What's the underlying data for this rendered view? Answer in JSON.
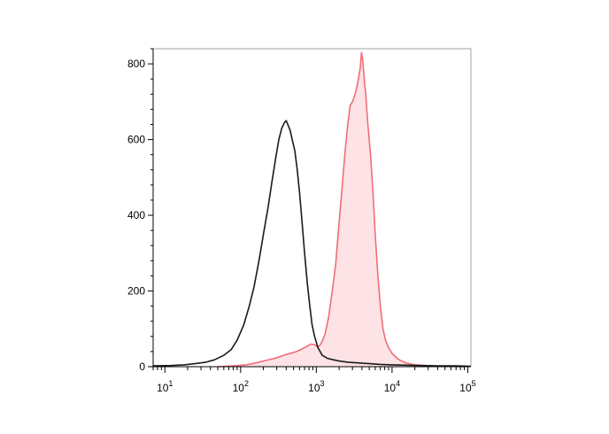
{
  "chart_data": {
    "type": "area",
    "title": "",
    "xlabel": "",
    "ylabel": "",
    "x_scale": "log",
    "xlim": [
      7,
      110000
    ],
    "ylim": [
      0,
      840
    ],
    "grid": false,
    "x_ticks": [
      {
        "value": 10,
        "base": "10",
        "exp": "1"
      },
      {
        "value": 100,
        "base": "10",
        "exp": "2"
      },
      {
        "value": 1000,
        "base": "10",
        "exp": "3"
      },
      {
        "value": 10000,
        "base": "10",
        "exp": "4"
      },
      {
        "value": 100000,
        "base": "10",
        "exp": "5"
      }
    ],
    "y_ticks": [
      0,
      200,
      400,
      600,
      800
    ],
    "series": [
      {
        "color": "#1a1a1a",
        "fill": "none",
        "points": [
          [
            7,
            2
          ],
          [
            12,
            3
          ],
          [
            18,
            5
          ],
          [
            25,
            8
          ],
          [
            35,
            12
          ],
          [
            45,
            18
          ],
          [
            60,
            30
          ],
          [
            75,
            45
          ],
          [
            90,
            70
          ],
          [
            110,
            110
          ],
          [
            130,
            160
          ],
          [
            150,
            210
          ],
          [
            175,
            280
          ],
          [
            200,
            350
          ],
          [
            230,
            420
          ],
          [
            260,
            490
          ],
          [
            290,
            550
          ],
          [
            320,
            600
          ],
          [
            350,
            630
          ],
          [
            380,
            645
          ],
          [
            400,
            650
          ],
          [
            420,
            640
          ],
          [
            450,
            625
          ],
          [
            480,
            600
          ],
          [
            520,
            570
          ],
          [
            560,
            520
          ],
          [
            600,
            460
          ],
          [
            650,
            380
          ],
          [
            700,
            300
          ],
          [
            760,
            220
          ],
          [
            820,
            160
          ],
          [
            880,
            110
          ],
          [
            950,
            80
          ],
          [
            1050,
            50
          ],
          [
            1200,
            30
          ],
          [
            1400,
            22
          ],
          [
            1700,
            18
          ],
          [
            2000,
            15
          ],
          [
            2600,
            12
          ],
          [
            3500,
            10
          ],
          [
            5000,
            8
          ],
          [
            7000,
            6
          ],
          [
            10000,
            5
          ],
          [
            15000,
            4
          ],
          [
            25000,
            3
          ],
          [
            40000,
            2
          ],
          [
            70000,
            2
          ],
          [
            110000,
            1
          ]
        ]
      },
      {
        "color": "#f06d78",
        "fill": "#fde3e5",
        "points": [
          [
            50,
            0
          ],
          [
            80,
            2
          ],
          [
            120,
            5
          ],
          [
            160,
            10
          ],
          [
            200,
            15
          ],
          [
            280,
            22
          ],
          [
            400,
            32
          ],
          [
            550,
            40
          ],
          [
            700,
            50
          ],
          [
            850,
            60
          ],
          [
            950,
            58
          ],
          [
            1050,
            52
          ],
          [
            1150,
            60
          ],
          [
            1300,
            85
          ],
          [
            1450,
            130
          ],
          [
            1600,
            190
          ],
          [
            1800,
            270
          ],
          [
            2000,
            380
          ],
          [
            2200,
            480
          ],
          [
            2400,
            570
          ],
          [
            2600,
            640
          ],
          [
            2800,
            690
          ],
          [
            3000,
            700
          ],
          [
            3200,
            715
          ],
          [
            3400,
            735
          ],
          [
            3600,
            760
          ],
          [
            3800,
            790
          ],
          [
            3950,
            830
          ],
          [
            4100,
            810
          ],
          [
            4300,
            760
          ],
          [
            4500,
            720
          ],
          [
            4800,
            640
          ],
          [
            5200,
            560
          ],
          [
            5600,
            460
          ],
          [
            6000,
            350
          ],
          [
            6500,
            240
          ],
          [
            7000,
            160
          ],
          [
            7600,
            100
          ],
          [
            8200,
            70
          ],
          [
            9000,
            50
          ],
          [
            10000,
            35
          ],
          [
            12000,
            20
          ],
          [
            15000,
            10
          ],
          [
            20000,
            5
          ],
          [
            30000,
            2
          ],
          [
            50000,
            1
          ],
          [
            90000,
            0
          ]
        ]
      }
    ]
  }
}
